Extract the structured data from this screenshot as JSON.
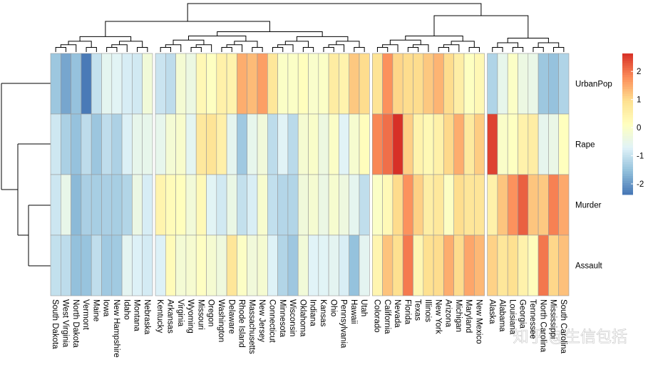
{
  "chart_data": {
    "type": "heatmap",
    "rows": [
      "UrbanPop",
      "Rape",
      "Murder",
      "Assault"
    ],
    "columns": [
      "South Dakota",
      "West Virginia",
      "North Dakota",
      "Vermont",
      "Maine",
      "Iowa",
      "New Hampshire",
      "Idaho",
      "Montana",
      "Nebraska",
      "Kentucky",
      "Arkansas",
      "Virginia",
      "Wyoming",
      "Missouri",
      "Oregon",
      "Washington",
      "Delaware",
      "Rhode Island",
      "Massachusetts",
      "New Jersey",
      "Connecticut",
      "Minnesota",
      "Wisconsin",
      "Oklahoma",
      "Indiana",
      "Kansas",
      "Ohio",
      "Pennsylvania",
      "Hawaii",
      "Utah",
      "Colorado",
      "California",
      "Nevada",
      "Florida",
      "Texas",
      "Illinois",
      "New York",
      "Arizona",
      "Michigan",
      "Maryland",
      "New Mexico",
      "Alaska",
      "Alabama",
      "Louisiana",
      "Georgia",
      "Tennessee",
      "North Carolina",
      "Mississippi",
      "South Carolina"
    ],
    "values": [
      [
        -1.42,
        -1.83,
        -1.49,
        -2.32,
        -1.0,
        -0.59,
        -0.66,
        -0.8,
        -0.87,
        -0.24,
        -0.94,
        -1.07,
        -0.17,
        -0.38,
        0.31,
        0.1,
        0.52,
        0.45,
        1.48,
        1.34,
        1.62,
        0.79,
        0.03,
        0.03,
        0.17,
        -0.04,
        0.03,
        0.65,
        0.45,
        1.21,
        1.0,
        0.86,
        1.76,
        1.07,
        1.0,
        1.0,
        1.21,
        1.41,
        1.0,
        0.58,
        0.1,
        0.31,
        -1.21,
        -0.52,
        0.03,
        -0.38,
        -0.45,
        -1.42,
        -1.49,
        -1.21
      ],
      [
        -0.9,
        -1.27,
        -1.49,
        -1.07,
        -1.43,
        -1.06,
        -1.25,
        -0.75,
        -0.52,
        -0.51,
        -0.53,
        -0.18,
        -0.06,
        -0.6,
        0.74,
        0.86,
        0.53,
        -0.58,
        -1.38,
        -0.53,
        -0.26,
        -1.08,
        -0.68,
        -1.11,
        -0.13,
        -0.02,
        -0.35,
        0.02,
        -0.68,
        -0.11,
        0.18,
        1.86,
        2.07,
        2.64,
        1.14,
        0.46,
        0.3,
        0.52,
        1.04,
        1.48,
        0.7,
        1.16,
        2.48,
        0.0,
        0.1,
        0.49,
        0.61,
        -0.55,
        -0.44,
        0.14
      ],
      [
        -0.92,
        -0.48,
        -1.6,
        -1.28,
        -1.31,
        -1.28,
        -1.31,
        -1.19,
        -0.41,
        -0.8,
        0.44,
        0.23,
        0.16,
        -0.23,
        0.28,
        -0.66,
        -0.87,
        -0.43,
        -1.01,
        -0.78,
        -0.09,
        -1.03,
        -1.17,
        -1.19,
        -0.27,
        -0.13,
        -0.41,
        -0.11,
        -0.34,
        -0.57,
        -1.05,
        0.03,
        0.28,
        1.01,
        1.75,
        1.13,
        0.6,
        0.76,
        0.07,
        0.99,
        0.81,
        0.83,
        0.51,
        1.24,
        1.75,
        2.21,
        1.24,
        1.2,
        1.91,
        1.52
      ],
      [
        -1.02,
        -1.08,
        -1.51,
        -1.47,
        -1.05,
        -1.38,
        -1.37,
        -0.61,
        -0.74,
        -0.83,
        -0.74,
        0.23,
        -0.18,
        -0.12,
        0.09,
        -0.14,
        -0.31,
        0.81,
        0.04,
        -0.26,
        -0.14,
        -0.73,
        -1.19,
        -1.41,
        -0.24,
        -0.69,
        -0.67,
        -0.61,
        -0.78,
        -1.5,
        -0.61,
        0.4,
        1.26,
        0.97,
        1.97,
        0.36,
        0.94,
        1.0,
        1.48,
        1.01,
        1.55,
        1.37,
        1.11,
        0.78,
        0.94,
        0.49,
        0.21,
        2.0,
        1.06,
        1.29
      ]
    ],
    "colors": [
      "#4575B4",
      "#91BFDB",
      "#E0F3F8",
      "#FFFFBF",
      "#FEE090",
      "#FC8D59",
      "#D73027"
    ],
    "colorbar_lim": [
      -2.38,
      2.64
    ],
    "colorbar_ticks": [
      -2,
      -1,
      0,
      1,
      2
    ],
    "watermark": "知乎 @生信包括"
  }
}
